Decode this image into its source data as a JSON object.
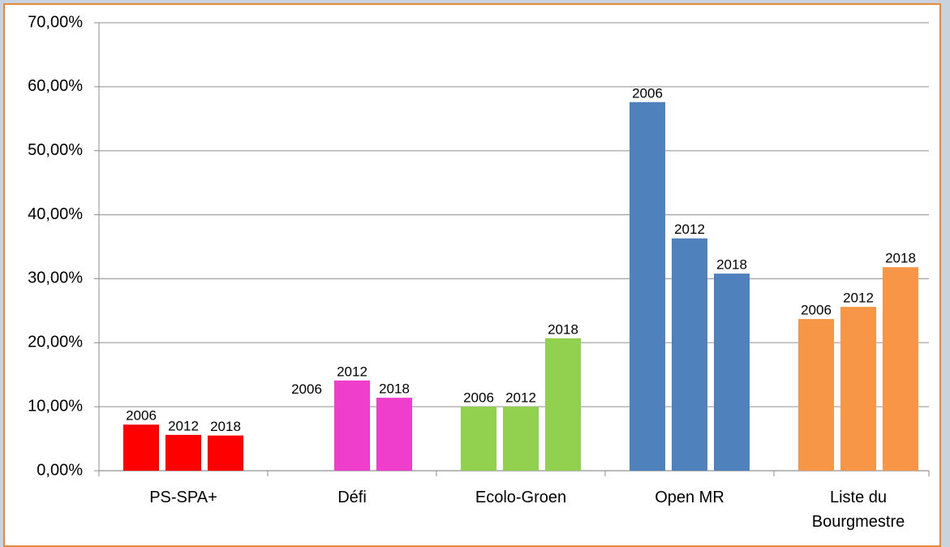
{
  "chart_data": {
    "type": "bar",
    "categories": [
      "PS-SPA+",
      "Défi",
      "Ecolo-Groen",
      "Open MR",
      "Liste du Bourgmestre"
    ],
    "category_colors": [
      "#ff0000",
      "#ee3ecb",
      "#92d050",
      "#4f81bd",
      "#f79646"
    ],
    "series": [
      {
        "name": "2006",
        "values": [
          7.2,
          null,
          10.0,
          57.6,
          23.7
        ]
      },
      {
        "name": "2012",
        "values": [
          5.6,
          14.1,
          10.0,
          36.3,
          25.6
        ]
      },
      {
        "name": "2018",
        "values": [
          5.5,
          11.4,
          20.7,
          30.8,
          31.8
        ]
      }
    ],
    "ylim": [
      0,
      70
    ],
    "yticks": [
      {
        "value": 0,
        "label": "0,00%"
      },
      {
        "value": 10,
        "label": "10,00%"
      },
      {
        "value": 20,
        "label": "20,00%"
      },
      {
        "value": 30,
        "label": "30,00%"
      },
      {
        "value": 40,
        "label": "40,00%"
      },
      {
        "value": 50,
        "label": "50,00%"
      },
      {
        "value": 60,
        "label": "60,00%"
      },
      {
        "value": 70,
        "label": "70,00%"
      }
    ],
    "grid": true
  }
}
